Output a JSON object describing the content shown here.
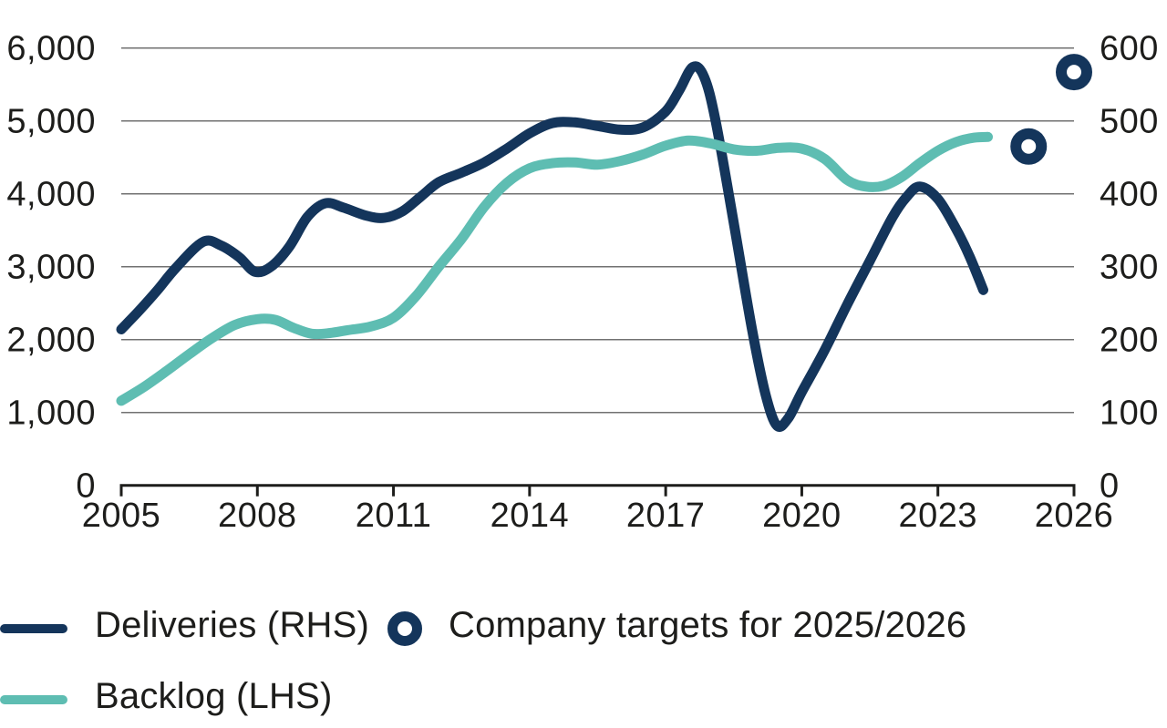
{
  "chart_data": {
    "type": "line",
    "title": "",
    "grid": true,
    "legend_position": "bottom-left",
    "background_color": "#ffffff",
    "gridline_color": "#717171",
    "axis_color": "#1d1d1b",
    "x_axis": {
      "range": [
        2005,
        2026
      ],
      "ticks": [
        2005,
        2008,
        2011,
        2014,
        2017,
        2020,
        2023,
        2026
      ]
    },
    "left_axis": {
      "range": [
        0,
        6000
      ],
      "ticks": [
        0,
        1000,
        2000,
        3000,
        4000,
        5000,
        6000
      ],
      "tick_labels": [
        "0",
        "1,000",
        "2,000",
        "3,000",
        "4,000",
        "5,000",
        "6,000"
      ]
    },
    "right_axis": {
      "range": [
        0,
        600
      ],
      "ticks": [
        0,
        100,
        200,
        300,
        400,
        500,
        600
      ],
      "tick_labels": [
        "0",
        "100",
        "200",
        "300",
        "400",
        "500",
        "600"
      ]
    },
    "series": [
      {
        "name": "Deliveries (RHS)",
        "axis": "right",
        "style": "line",
        "color": "#14355b",
        "points": [
          [
            2005.0,
            214
          ],
          [
            2005.4,
            240
          ],
          [
            2005.8,
            268
          ],
          [
            2006.2,
            298
          ],
          [
            2006.8,
            334
          ],
          [
            2007.2,
            329
          ],
          [
            2007.6,
            313
          ],
          [
            2007.95,
            293
          ],
          [
            2008.3,
            300
          ],
          [
            2008.7,
            327
          ],
          [
            2009.1,
            368
          ],
          [
            2009.5,
            387
          ],
          [
            2009.9,
            381
          ],
          [
            2010.4,
            370
          ],
          [
            2010.8,
            367
          ],
          [
            2011.2,
            376
          ],
          [
            2011.6,
            396
          ],
          [
            2012.0,
            416
          ],
          [
            2012.5,
            429
          ],
          [
            2013.0,
            443
          ],
          [
            2013.5,
            462
          ],
          [
            2014.0,
            483
          ],
          [
            2014.5,
            497
          ],
          [
            2015.0,
            498
          ],
          [
            2015.5,
            493
          ],
          [
            2016.0,
            488
          ],
          [
            2016.5,
            491
          ],
          [
            2017.0,
            513
          ],
          [
            2017.3,
            542
          ],
          [
            2017.6,
            574
          ],
          [
            2017.85,
            560
          ],
          [
            2018.1,
            500
          ],
          [
            2018.5,
            360
          ],
          [
            2018.9,
            215
          ],
          [
            2019.2,
            125
          ],
          [
            2019.45,
            82
          ],
          [
            2019.7,
            92
          ],
          [
            2020.0,
            128
          ],
          [
            2020.5,
            185
          ],
          [
            2021.0,
            248
          ],
          [
            2021.5,
            308
          ],
          [
            2022.0,
            368
          ],
          [
            2022.3,
            395
          ],
          [
            2022.6,
            410
          ],
          [
            2023.0,
            393
          ],
          [
            2023.4,
            352
          ],
          [
            2023.7,
            314
          ],
          [
            2024.0,
            268
          ]
        ]
      },
      {
        "name": "Backlog (LHS)",
        "axis": "left",
        "style": "line",
        "color": "#5ebdb2",
        "points": [
          [
            2005.0,
            1160
          ],
          [
            2005.5,
            1350
          ],
          [
            2006.0,
            1570
          ],
          [
            2006.5,
            1800
          ],
          [
            2007.0,
            2020
          ],
          [
            2007.5,
            2200
          ],
          [
            2008.0,
            2280
          ],
          [
            2008.4,
            2270
          ],
          [
            2008.8,
            2160
          ],
          [
            2009.2,
            2080
          ],
          [
            2009.6,
            2090
          ],
          [
            2010.0,
            2130
          ],
          [
            2010.5,
            2180
          ],
          [
            2011.0,
            2300
          ],
          [
            2011.5,
            2600
          ],
          [
            2012.0,
            3000
          ],
          [
            2012.5,
            3380
          ],
          [
            2013.0,
            3820
          ],
          [
            2013.5,
            4150
          ],
          [
            2014.0,
            4350
          ],
          [
            2014.5,
            4420
          ],
          [
            2015.0,
            4430
          ],
          [
            2015.5,
            4400
          ],
          [
            2016.0,
            4450
          ],
          [
            2016.5,
            4540
          ],
          [
            2017.0,
            4660
          ],
          [
            2017.5,
            4730
          ],
          [
            2018.0,
            4690
          ],
          [
            2018.5,
            4610
          ],
          [
            2019.0,
            4590
          ],
          [
            2019.5,
            4630
          ],
          [
            2020.0,
            4620
          ],
          [
            2020.5,
            4480
          ],
          [
            2021.0,
            4190
          ],
          [
            2021.4,
            4100
          ],
          [
            2021.8,
            4110
          ],
          [
            2022.2,
            4230
          ],
          [
            2022.6,
            4420
          ],
          [
            2023.0,
            4590
          ],
          [
            2023.4,
            4710
          ],
          [
            2023.8,
            4770
          ],
          [
            2024.1,
            4780
          ]
        ]
      },
      {
        "name": "Company targets for 2025/2026",
        "axis": "right",
        "style": "open-circle",
        "color": "#14355b",
        "points": [
          [
            2025,
            465
          ],
          [
            2026,
            567
          ]
        ]
      }
    ],
    "legend": [
      {
        "label": "Deliveries (RHS)",
        "marker": "line",
        "color": "#14355b"
      },
      {
        "label": "Backlog (LHS)",
        "marker": "line",
        "color": "#5ebdb2"
      },
      {
        "label": "Company targets for 2025/2026",
        "marker": "open-circle",
        "color": "#14355b"
      }
    ]
  }
}
